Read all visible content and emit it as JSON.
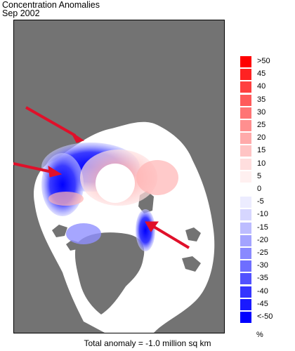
{
  "title_line1": "Concentration Anomalies",
  "title_line2": "Sep 2002",
  "legend": [
    {
      "label": ">50",
      "color": "#ff0000"
    },
    {
      "label": "45",
      "color": "#ff2222"
    },
    {
      "label": "40",
      "color": "#ff3f3f"
    },
    {
      "label": "35",
      "color": "#ff5a5a"
    },
    {
      "label": "30",
      "color": "#ff7474"
    },
    {
      "label": "25",
      "color": "#ff8f8f"
    },
    {
      "label": "20",
      "color": "#ffaaaa"
    },
    {
      "label": "15",
      "color": "#ffc4c4"
    },
    {
      "label": "10",
      "color": "#ffdede"
    },
    {
      "label": "5",
      "color": "#fff0f0"
    },
    {
      "label": "0",
      "color": "#ffffff"
    },
    {
      "label": "-5",
      "color": "#ececff"
    },
    {
      "label": "-10",
      "color": "#d6d6ff"
    },
    {
      "label": "-15",
      "color": "#bcbcff"
    },
    {
      "label": "-20",
      "color": "#a3a3ff"
    },
    {
      "label": "-25",
      "color": "#8989ff"
    },
    {
      "label": "-30",
      "color": "#6e6eff"
    },
    {
      "label": "-35",
      "color": "#5151ff"
    },
    {
      "label": "-40",
      "color": "#3434ff"
    },
    {
      "label": "-45",
      "color": "#1a1aff"
    },
    {
      "label": "<-50",
      "color": "#0000ff"
    }
  ],
  "legend_unit": "%",
  "total_anomaly": "Total anomaly = -1.0 million sq km",
  "colors": {
    "land": "#737373",
    "arrow": "#e0102a",
    "pole_hole": "#ffffff"
  }
}
